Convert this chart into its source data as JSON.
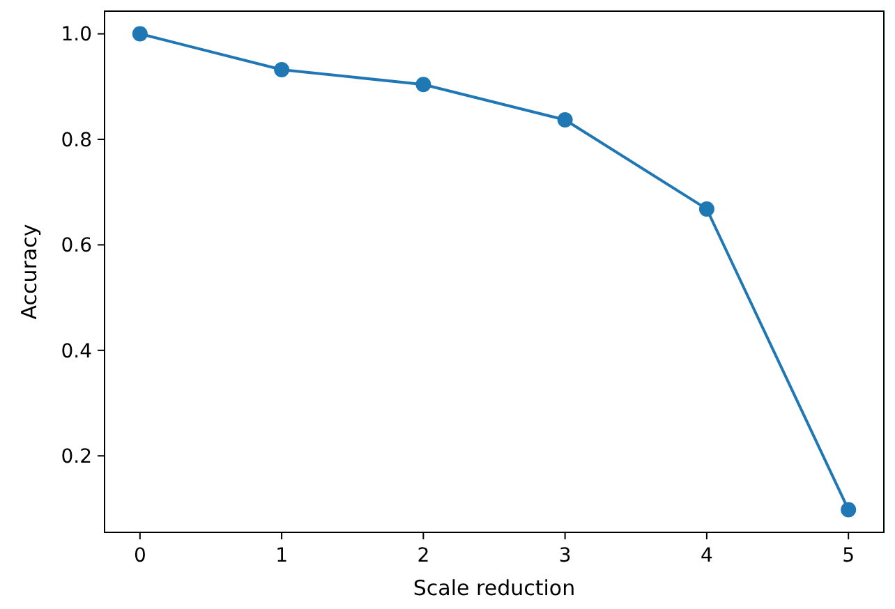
{
  "chart_data": {
    "type": "line",
    "xlabel": "Scale reduction",
    "ylabel": "Accuracy",
    "x": [
      0,
      1,
      2,
      3,
      4,
      5
    ],
    "series": [
      {
        "color": "#1f77b4",
        "values": [
          1.0,
          0.932,
          0.904,
          0.837,
          0.668,
          0.098
        ]
      }
    ],
    "xlim": [
      -0.25,
      5.25
    ],
    "xticks": [
      0,
      1,
      2,
      3,
      4,
      5
    ],
    "ylim": [
      0.055,
      1.043
    ],
    "yticks": [
      {
        "value": 0.2,
        "label": "0.2"
      },
      {
        "value": 0.4,
        "label": "0.4"
      },
      {
        "value": 0.6,
        "label": "0.6"
      },
      {
        "value": 0.8,
        "label": "0.8"
      },
      {
        "value": 1,
        "label": "1.0"
      }
    ],
    "grid": false,
    "marker": "circle",
    "line_style": "solid"
  }
}
